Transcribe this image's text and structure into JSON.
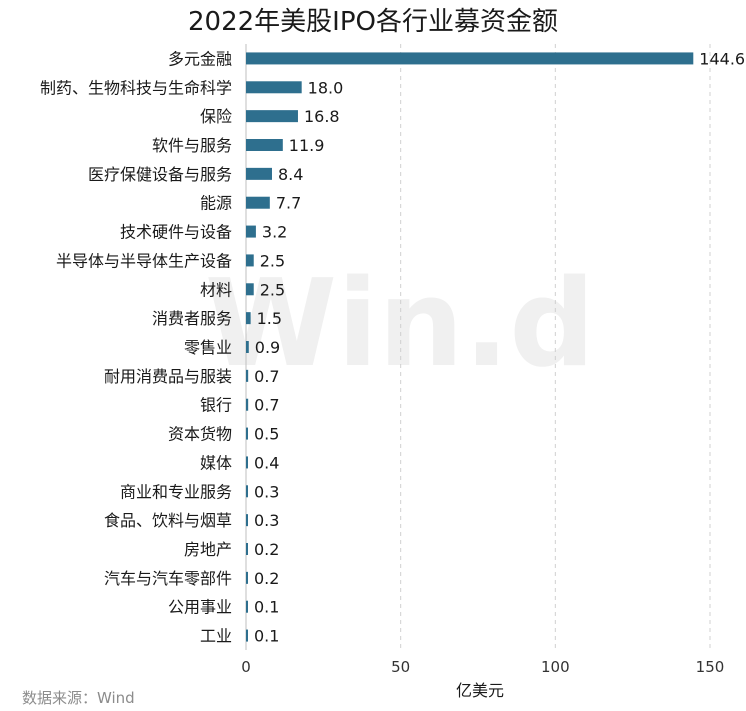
{
  "chart_data": {
    "type": "bar",
    "orientation": "horizontal",
    "title": "2022年美股IPO各行业募资金额",
    "xlabel": "亿美元",
    "xlim": [
      0,
      150
    ],
    "xticks": [
      0,
      50,
      100,
      150
    ],
    "grid": "vertical-dashed",
    "bar_color": "#2e6f8e",
    "categories": [
      "多元金融",
      "制药、生物科技与生命科学",
      "保险",
      "软件与服务",
      "医疗保健设备与服务",
      "能源",
      "技术硬件与设备",
      "半导体与半导体生产设备",
      "材料",
      "消费者服务",
      "零售业",
      "耐用消费品与服装",
      "银行",
      "资本货物",
      "媒体",
      "商业和专业服务",
      "食品、饮料与烟草",
      "房地产",
      "汽车与汽车零部件",
      "公用事业",
      "工业"
    ],
    "values": [
      144.6,
      18.0,
      16.8,
      11.9,
      8.4,
      7.7,
      3.2,
      2.5,
      2.5,
      1.5,
      0.9,
      0.7,
      0.7,
      0.5,
      0.4,
      0.3,
      0.3,
      0.2,
      0.2,
      0.1,
      0.1
    ],
    "value_labels": [
      "144.6",
      "18.0",
      "16.8",
      "11.9",
      "8.4",
      "7.7",
      "3.2",
      "2.5",
      "2.5",
      "1.5",
      "0.9",
      "0.7",
      "0.7",
      "0.5",
      "0.4",
      "0.3",
      "0.3",
      "0.2",
      "0.2",
      "0.1",
      "0.1"
    ],
    "source": "数据来源：Wind",
    "watermark": "Win.d"
  }
}
